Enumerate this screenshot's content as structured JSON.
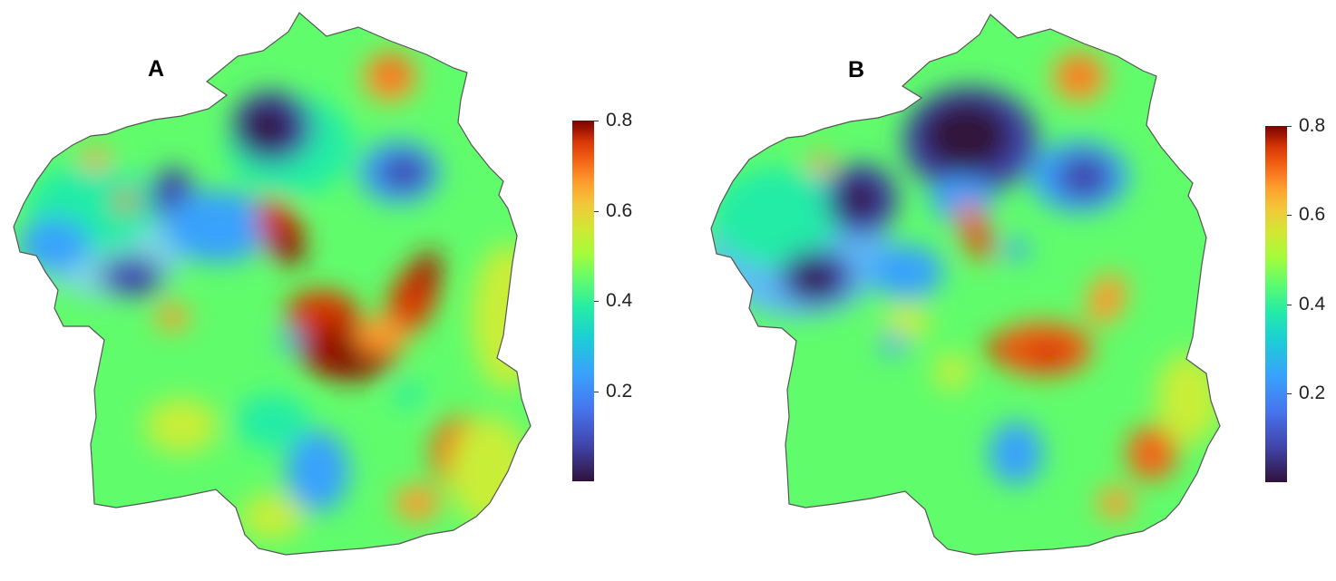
{
  "panels": [
    {
      "label": "A",
      "colorbar": {
        "ticks": [
          0.8,
          0.6,
          0.4,
          0.2
        ],
        "min": 0.0,
        "max": 0.8
      }
    },
    {
      "label": "B",
      "colorbar": {
        "ticks": [
          0.8,
          0.6,
          0.4,
          0.2
        ],
        "min": 0.0,
        "max": 0.8
      }
    }
  ],
  "colors": {
    "base_green": "#61fc6c",
    "teal": "#24eca6",
    "blue": "#4675ed",
    "dark_blue": "#30123b",
    "orange": "#fe9b2d",
    "dark_red": "#7a0403",
    "background": "#ffffff"
  }
}
